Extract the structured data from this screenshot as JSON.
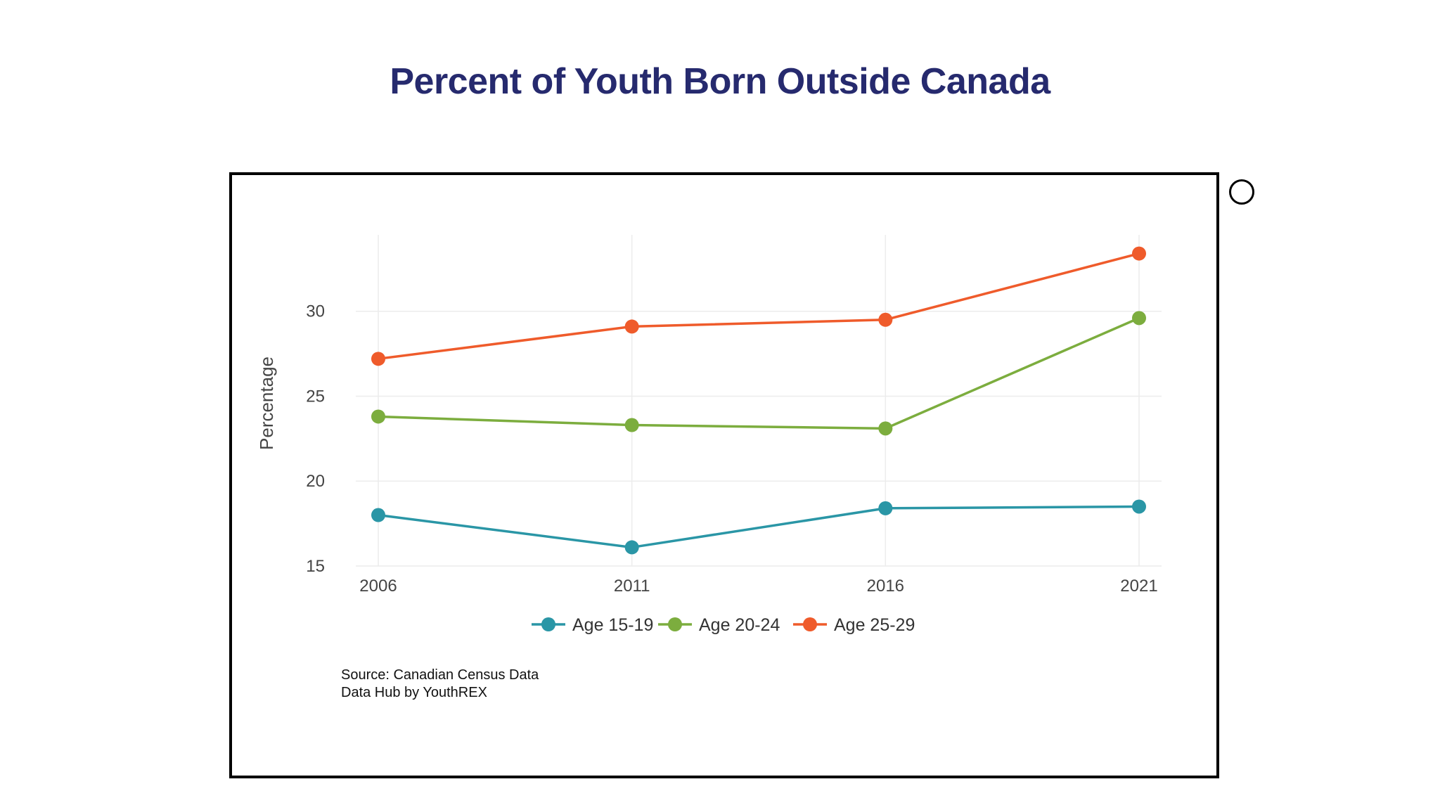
{
  "title": "Percent of Youth Born Outside Canada",
  "source_lines": [
    "Source: Canadian Census Data",
    "Data Hub by YouthREX"
  ],
  "colors": {
    "title": "#262a6e",
    "grid": "#ececec",
    "frame": "#000000"
  },
  "chart_data": {
    "type": "line",
    "title": "Percent of Youth Born Outside Canada",
    "xlabel": "",
    "ylabel": "Percentage",
    "x": [
      2006,
      2011,
      2016,
      2021
    ],
    "x_tick_labels": [
      "2006",
      "2011",
      "2016",
      "2021"
    ],
    "y_ticks": [
      15,
      20,
      25,
      30
    ],
    "y_tick_labels": [
      "15",
      "20",
      "25",
      "30"
    ],
    "ylim": [
      15,
      34.5
    ],
    "grid": true,
    "legend_position": "bottom-center",
    "series": [
      {
        "name": "Age 15-19",
        "color": "#2a96a6",
        "values": [
          18.0,
          16.1,
          18.4,
          18.5
        ]
      },
      {
        "name": "Age 20-24",
        "color": "#7cad3e",
        "values": [
          23.8,
          23.3,
          23.1,
          29.6
        ]
      },
      {
        "name": "Age 25-29",
        "color": "#ef5b2b",
        "values": [
          27.2,
          29.1,
          29.5,
          33.4
        ]
      }
    ]
  }
}
